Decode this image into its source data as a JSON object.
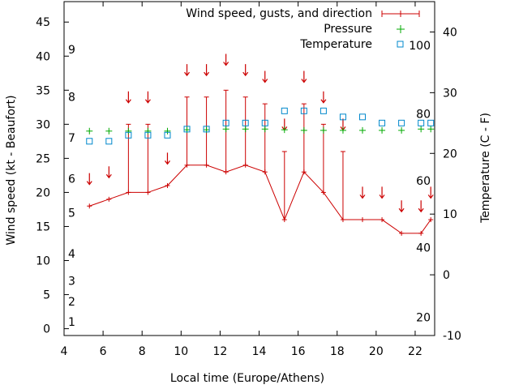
{
  "chart_data": {
    "type": "line",
    "title": "",
    "xlabel": "Local time (Europe/Athens)",
    "ylabel": "Wind speed (kt - Beaufort)",
    "y2label": "Temperature (C - F)",
    "xlim": [
      4,
      23
    ],
    "ylim": [
      -1,
      48
    ],
    "y2lim": [
      -10,
      45
    ],
    "x_ticks": [
      4,
      6,
      8,
      10,
      12,
      14,
      16,
      18,
      20,
      22
    ],
    "y_ticks": [
      0,
      5,
      10,
      15,
      20,
      25,
      30,
      35,
      40,
      45
    ],
    "y2_ticks": [
      -10,
      0,
      10,
      20,
      30,
      40
    ],
    "beaufort_labels": [
      {
        "label": "1",
        "y": 1
      },
      {
        "label": "2",
        "y": 4
      },
      {
        "label": "3",
        "y": 7
      },
      {
        "label": "4",
        "y": 11
      },
      {
        "label": "5",
        "y": 17
      },
      {
        "label": "6",
        "y": 22
      },
      {
        "label": "7",
        "y": 28
      },
      {
        "label": "8",
        "y": 34
      },
      {
        "label": "9",
        "y": 41
      }
    ],
    "fahrenheit_labels": [
      {
        "label": "20",
        "y2": -7
      },
      {
        "label": "40",
        "y2": 4.5
      },
      {
        "label": "60",
        "y2": 15.5
      },
      {
        "label": "80",
        "y2": 26.5
      },
      {
        "label": "100",
        "y2": 37.8
      }
    ],
    "legend_position": "top-right",
    "series": [
      {
        "name": "Wind speed, gusts, and direction",
        "color": "#cc0000",
        "x": [
          5.3,
          6.3,
          7.3,
          8.3,
          9.3,
          10.3,
          11.3,
          12.3,
          13.3,
          14.3,
          15.3,
          16.3,
          17.3,
          18.3,
          19.3,
          20.3,
          21.3,
          22.3,
          22.8
        ],
        "values": [
          18,
          19,
          20,
          20,
          21,
          24,
          24,
          23,
          24,
          23,
          16,
          23,
          20,
          16,
          16,
          16,
          14,
          14,
          16
        ],
        "gusts": [
          18,
          19,
          30,
          30,
          21,
          34,
          34,
          35,
          34,
          33,
          26,
          33,
          30,
          26,
          16,
          16,
          14,
          14,
          16
        ],
        "direction_arrow_y": [
          22,
          23,
          34,
          34,
          25,
          38,
          38,
          39.5,
          38,
          37,
          30,
          37,
          34,
          30,
          20,
          20,
          18,
          18,
          20
        ]
      },
      {
        "name": "Pressure",
        "color": "#00aa00",
        "x": [
          5.3,
          6.3,
          7.3,
          8.3,
          9.3,
          10.3,
          11.3,
          12.3,
          13.3,
          14.3,
          15.3,
          16.3,
          17.3,
          18.3,
          19.3,
          20.3,
          21.3,
          22.3,
          22.8
        ],
        "values": [
          29,
          29,
          29,
          29,
          29,
          29.2,
          29.2,
          29.3,
          29.3,
          29.3,
          29.2,
          29.1,
          29.1,
          29.1,
          29.1,
          29.1,
          29.1,
          29.3,
          29.3
        ]
      },
      {
        "name": "Temperature",
        "color": "#0088cc",
        "x": [
          5.3,
          6.3,
          7.3,
          8.3,
          9.3,
          10.3,
          11.3,
          12.3,
          13.3,
          14.3,
          15.3,
          16.3,
          17.3,
          18.3,
          19.3,
          20.3,
          21.3,
          22.3,
          22.8
        ],
        "values_c": [
          22,
          22,
          23,
          23,
          23,
          24,
          24,
          25,
          25,
          25,
          27,
          27,
          27,
          26,
          26,
          25,
          25,
          25,
          25
        ]
      }
    ]
  }
}
